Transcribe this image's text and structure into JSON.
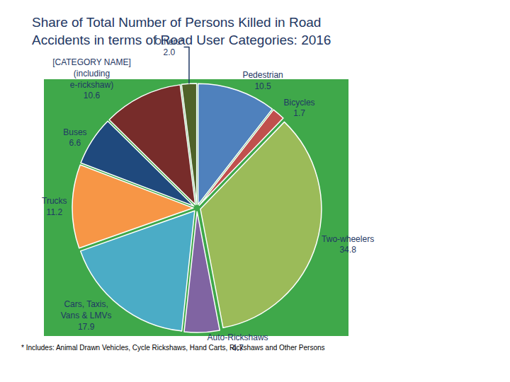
{
  "chart_data": {
    "type": "pie",
    "title": "Share of Total Number of Persons Killed in Road\nAccidents in terms of Road User Categories: 2016",
    "categories": [
      "Pedestrian",
      "Bicycles",
      "Two-wheelers",
      "Auto-Rickshaws",
      "Cars, Taxis, Vans & LMVs",
      "Trucks",
      "Buses",
      "[CATEGORY NAME] (including e-rickshaw)",
      "Others*"
    ],
    "values": [
      10.5,
      1.7,
      34.8,
      4.7,
      17.9,
      11.2,
      6.6,
      10.6,
      2.0
    ],
    "value_labels": [
      "10.5",
      "1.7",
      "34.8",
      "4.7",
      "17.9",
      "11.2",
      "6.6",
      "10.6",
      "2.0"
    ],
    "colors": [
      "#4f81bd",
      "#c0504d",
      "#9bbb59",
      "#8064a2",
      "#4bacc6",
      "#f79646",
      "#1f497d",
      "#772c2a",
      "#4f6228"
    ],
    "data_labels": true,
    "annotations": [
      "* Includes: Animal Drawn Vehicles, Cycle Rickshaws, Hand Carts, Rickshaws and Other Persons"
    ]
  }
}
